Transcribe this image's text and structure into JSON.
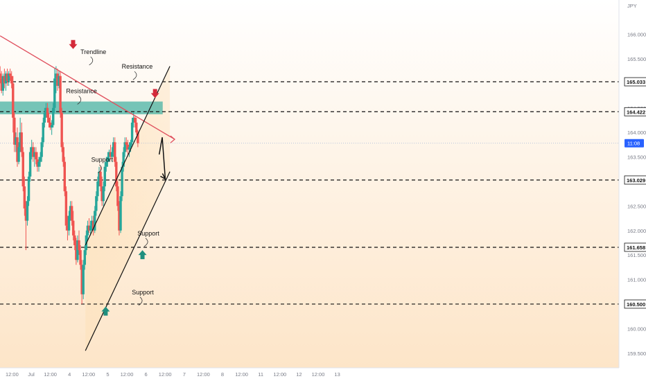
{
  "colors": {
    "bull": "#26a69a",
    "bear": "#ef5350",
    "trendline": "#e0505e",
    "zone": "#48b3a4",
    "arrow_down": "#d42a3a",
    "arrow_up": "#1f8f7e",
    "price_tag": "#2962ff",
    "gradient_top": "#ffffff",
    "gradient_bottom": "#fde5c8"
  },
  "chart_data": {
    "type": "candlestick",
    "currency_label": "JPY",
    "ylim": [
      159.2,
      166.7
    ],
    "x_ticks": [
      "12:00",
      "Jul",
      "12:00",
      "4",
      "12:00",
      "5",
      "12:00",
      "6",
      "12:00",
      "7",
      "12:00",
      "8",
      "12:00",
      "11",
      "12:00",
      "12",
      "12:00",
      "13"
    ],
    "y_ticks": [
      "159.500",
      "160.000",
      "160.500",
      "161.000",
      "161.500",
      "162.000",
      "162.500",
      "163.000",
      "163.500",
      "164.000",
      "164.500",
      "165.000",
      "165.500",
      "166.000"
    ],
    "level_tags": [
      "165.033",
      "164.422",
      "163.029",
      "161.658",
      "160.500"
    ],
    "level_values": [
      165.033,
      164.422,
      163.029,
      161.658,
      160.5
    ],
    "current_price": {
      "value": 163.78,
      "label": "11:08"
    },
    "resistance_zone": [
      164.37,
      164.63
    ],
    "annotations": [
      {
        "text": "Trendline",
        "x_hours": 39,
        "price": 165.6
      },
      {
        "text": "Resistance",
        "x_hours": 66.5,
        "price": 165.3
      },
      {
        "text": "Resistance",
        "x_hours": 31.6,
        "price": 164.8
      },
      {
        "text": "Support",
        "x_hours": 44.5,
        "price": 163.4
      },
      {
        "text": "Support",
        "x_hours": 73.5,
        "price": 161.9
      },
      {
        "text": "Support",
        "x_hours": 70,
        "price": 160.7
      }
    ],
    "trendline": {
      "from": {
        "x_hours": -19.5,
        "price": 165.97
      },
      "to": {
        "x_hours": 90,
        "price": 163.86
      }
    },
    "channel_upper": {
      "from": {
        "x_hours": 34,
        "price": 161.7
      },
      "to": {
        "x_hours": 87,
        "price": 165.35
      }
    },
    "channel_lower": {
      "from": {
        "x_hours": 34,
        "price": 159.55
      },
      "to": {
        "x_hours": 87,
        "price": 163.2
      }
    },
    "projection": [
      {
        "x_hours": 80.3,
        "price": 163.55
      },
      {
        "x_hours": 82.2,
        "price": 163.9
      },
      {
        "x_hours": 84.1,
        "price": 163.05
      }
    ],
    "down_markers": [
      {
        "x_hours": 26.3,
        "price": 165.8
      },
      {
        "x_hours": 77.7,
        "price": 164.8
      }
    ],
    "up_markers": [
      {
        "x_hours": 46.7,
        "price": 160.35
      },
      {
        "x_hours": 69.8,
        "price": 161.5
      }
    ],
    "candles": [
      [
        165.2,
        165.35,
        165.0,
        165.1
      ],
      [
        165.1,
        165.25,
        164.8,
        164.85
      ],
      [
        164.85,
        165.2,
        164.75,
        165.15
      ],
      [
        165.15,
        165.3,
        164.9,
        165.0
      ],
      [
        165.0,
        165.25,
        164.85,
        165.2
      ],
      [
        165.2,
        165.3,
        164.95,
        165.05
      ],
      [
        165.05,
        165.25,
        164.95,
        165.2
      ],
      [
        165.2,
        165.3,
        165.05,
        165.15
      ],
      [
        165.15,
        165.25,
        164.9,
        165.0
      ],
      [
        165.0,
        165.15,
        164.0,
        164.3
      ],
      [
        164.3,
        164.4,
        163.6,
        163.75
      ],
      [
        163.75,
        164.0,
        163.6,
        163.9
      ],
      [
        163.9,
        164.1,
        163.3,
        163.4
      ],
      [
        163.4,
        163.8,
        163.35,
        163.7
      ],
      [
        163.7,
        164.3,
        163.6,
        164.0
      ],
      [
        164.0,
        164.2,
        163.5,
        163.6
      ],
      [
        163.6,
        163.7,
        162.8,
        162.9
      ],
      [
        162.9,
        163.1,
        162.3,
        162.45
      ],
      [
        162.45,
        162.6,
        161.6,
        162.2
      ],
      [
        162.2,
        162.7,
        162.1,
        162.6
      ],
      [
        162.6,
        163.2,
        162.5,
        163.1
      ],
      [
        163.1,
        163.7,
        163.0,
        163.6
      ],
      [
        163.6,
        163.85,
        163.45,
        163.7
      ],
      [
        163.7,
        163.8,
        163.4,
        163.5
      ],
      [
        163.5,
        163.7,
        163.3,
        163.6
      ],
      [
        163.6,
        163.7,
        163.35,
        163.45
      ],
      [
        163.45,
        163.6,
        163.2,
        163.3
      ],
      [
        163.3,
        163.5,
        163.2,
        163.4
      ],
      [
        163.4,
        163.6,
        163.3,
        163.5
      ],
      [
        163.5,
        163.9,
        163.4,
        163.8
      ],
      [
        163.8,
        164.3,
        163.7,
        164.2
      ],
      [
        164.2,
        164.5,
        164.1,
        164.4
      ],
      [
        164.4,
        164.6,
        164.3,
        164.5
      ],
      [
        164.5,
        164.6,
        164.2,
        164.3
      ],
      [
        164.3,
        164.4,
        164.1,
        164.2
      ],
      [
        164.2,
        164.35,
        164.05,
        164.1
      ],
      [
        164.1,
        164.25,
        163.95,
        164.15
      ],
      [
        164.15,
        164.6,
        164.1,
        164.5
      ],
      [
        164.5,
        165.3,
        164.4,
        165.1
      ],
      [
        165.1,
        165.35,
        164.8,
        165.2
      ],
      [
        165.2,
        165.3,
        164.85,
        164.95
      ],
      [
        164.95,
        165.25,
        164.9,
        165.15
      ],
      [
        165.15,
        165.25,
        164.3,
        164.4
      ],
      [
        164.4,
        164.5,
        163.6,
        163.7
      ],
      [
        163.7,
        163.8,
        163.3,
        163.4
      ],
      [
        163.4,
        163.5,
        162.7,
        162.8
      ],
      [
        162.8,
        162.9,
        162.0,
        162.1
      ],
      [
        162.1,
        162.3,
        161.8,
        162.0
      ],
      [
        162.0,
        162.4,
        161.9,
        162.3
      ],
      [
        162.3,
        162.6,
        162.2,
        162.5
      ],
      [
        162.5,
        162.6,
        162.1,
        162.2
      ],
      [
        162.2,
        162.4,
        161.8,
        161.9
      ],
      [
        161.9,
        162.0,
        161.6,
        161.7
      ],
      [
        161.7,
        161.85,
        161.3,
        161.4
      ],
      [
        161.4,
        161.9,
        161.35,
        161.8
      ],
      [
        161.8,
        162.0,
        161.5,
        161.6
      ],
      [
        161.6,
        161.7,
        161.2,
        161.3
      ],
      [
        161.3,
        161.4,
        160.5,
        160.7
      ],
      [
        160.7,
        161.4,
        160.6,
        161.3
      ],
      [
        161.3,
        161.7,
        161.2,
        161.6
      ],
      [
        161.6,
        162.0,
        161.5,
        161.9
      ],
      [
        161.9,
        162.2,
        161.8,
        162.1
      ],
      [
        162.1,
        162.25,
        161.95,
        162.0
      ],
      [
        162.0,
        162.2,
        161.9,
        162.1
      ],
      [
        162.1,
        162.3,
        162.0,
        162.2
      ],
      [
        162.2,
        162.3,
        161.9,
        162.0
      ],
      [
        162.0,
        162.5,
        161.95,
        162.4
      ],
      [
        162.4,
        162.8,
        162.3,
        162.7
      ],
      [
        162.7,
        163.1,
        162.6,
        163.0
      ],
      [
        163.0,
        163.3,
        162.9,
        163.2
      ],
      [
        163.2,
        163.3,
        162.8,
        162.9
      ],
      [
        162.9,
        163.1,
        162.5,
        162.6
      ],
      [
        162.6,
        163.0,
        162.5,
        162.9
      ],
      [
        162.9,
        163.4,
        162.8,
        163.3
      ],
      [
        163.3,
        163.5,
        163.2,
        163.4
      ],
      [
        163.4,
        163.6,
        163.3,
        163.5
      ],
      [
        163.5,
        163.65,
        163.4,
        163.6
      ],
      [
        163.6,
        163.75,
        163.45,
        163.5
      ],
      [
        163.5,
        163.7,
        163.4,
        163.6
      ],
      [
        163.6,
        163.9,
        163.5,
        163.8
      ],
      [
        163.8,
        163.9,
        163.3,
        163.4
      ],
      [
        163.4,
        163.5,
        162.8,
        162.9
      ],
      [
        162.9,
        163.0,
        162.4,
        162.5
      ],
      [
        162.5,
        162.6,
        161.9,
        162.0
      ],
      [
        162.0,
        162.8,
        161.95,
        162.7
      ],
      [
        162.7,
        163.4,
        162.6,
        163.3
      ],
      [
        163.3,
        163.7,
        163.2,
        163.6
      ],
      [
        163.6,
        163.9,
        163.5,
        163.8
      ],
      [
        163.8,
        163.9,
        163.6,
        163.75
      ],
      [
        163.75,
        163.85,
        163.55,
        163.65
      ],
      [
        163.65,
        163.8,
        163.5,
        163.7
      ],
      [
        163.7,
        163.85,
        163.6,
        163.8
      ],
      [
        163.8,
        164.3,
        163.75,
        164.2
      ],
      [
        164.2,
        164.4,
        164.1,
        164.3
      ],
      [
        164.3,
        164.35,
        164.1,
        164.2
      ],
      [
        164.2,
        164.3,
        163.95,
        164.0
      ],
      [
        164.0,
        164.05,
        163.7,
        163.78
      ]
    ]
  }
}
